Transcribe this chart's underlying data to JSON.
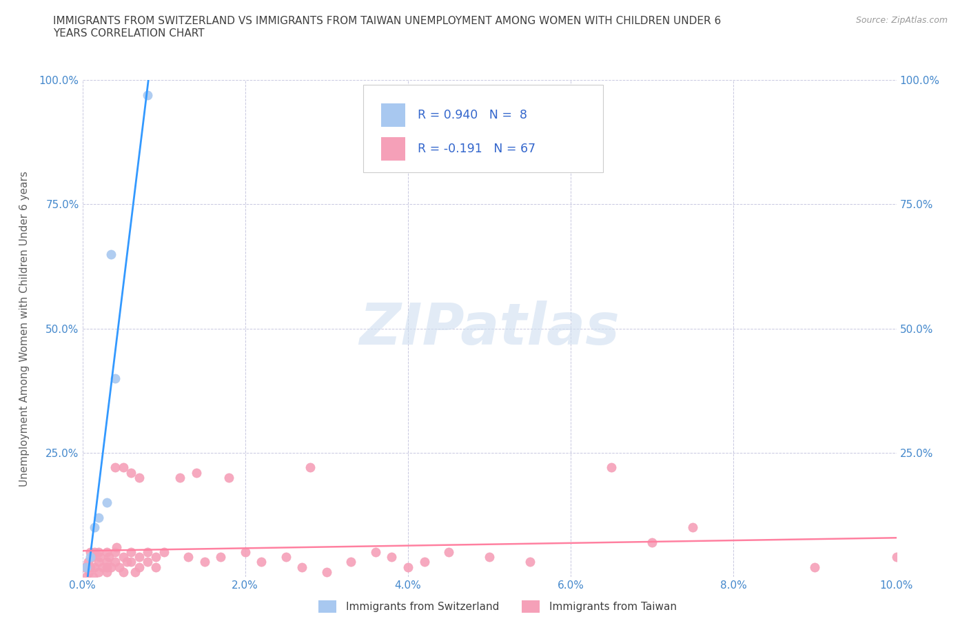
{
  "title": "IMMIGRANTS FROM SWITZERLAND VS IMMIGRANTS FROM TAIWAN UNEMPLOYMENT AMONG WOMEN WITH CHILDREN UNDER 6\nYEARS CORRELATION CHART",
  "source": "Source: ZipAtlas.com",
  "ylabel": "Unemployment Among Women with Children Under 6 years",
  "xlim": [
    0,
    0.1
  ],
  "ylim": [
    0,
    1.0
  ],
  "xticks": [
    0.0,
    0.02,
    0.04,
    0.06,
    0.08,
    0.1
  ],
  "xtick_labels": [
    "0.0%",
    "2.0%",
    "4.0%",
    "6.0%",
    "8.0%",
    "10.0%"
  ],
  "yticks": [
    0.0,
    0.25,
    0.5,
    0.75,
    1.0
  ],
  "ytick_labels_left": [
    "",
    "25.0%",
    "50.0%",
    "75.0%",
    "100.0%"
  ],
  "ytick_labels_right": [
    "",
    "25.0%",
    "50.0%",
    "75.0%",
    "100.0%"
  ],
  "switzerland_color": "#a8c8f0",
  "taiwan_color": "#f5a0b8",
  "trend_switzerland_color": "#3399ff",
  "trend_taiwan_color": "#ff80a0",
  "R_switzerland": 0.94,
  "N_switzerland": 8,
  "R_taiwan": -0.191,
  "N_taiwan": 67,
  "legend_label_switzerland": "Immigrants from Switzerland",
  "legend_label_taiwan": "Immigrants from Taiwan",
  "watermark_text": "ZIPatlas",
  "background_color": "#ffffff",
  "grid_color": "#c8c8e0",
  "title_color": "#404040",
  "axis_label_color": "#606060",
  "tick_color": "#4488cc",
  "legend_r_color": "#3366cc",
  "switzerland_x": [
    0.0005,
    0.001,
    0.0015,
    0.002,
    0.003,
    0.0035,
    0.004,
    0.008
  ],
  "switzerland_y": [
    0.02,
    0.04,
    0.1,
    0.12,
    0.15,
    0.65,
    0.4,
    0.97
  ],
  "taiwan_x": [
    0.0003,
    0.0005,
    0.0007,
    0.0008,
    0.001,
    0.001,
    0.0012,
    0.0013,
    0.0015,
    0.0015,
    0.002,
    0.002,
    0.002,
    0.0022,
    0.0025,
    0.003,
    0.003,
    0.003,
    0.003,
    0.0033,
    0.0035,
    0.004,
    0.004,
    0.004,
    0.0042,
    0.0045,
    0.005,
    0.005,
    0.005,
    0.0055,
    0.006,
    0.006,
    0.006,
    0.0065,
    0.007,
    0.007,
    0.007,
    0.008,
    0.008,
    0.009,
    0.009,
    0.01,
    0.012,
    0.013,
    0.014,
    0.015,
    0.017,
    0.018,
    0.02,
    0.022,
    0.025,
    0.027,
    0.028,
    0.03,
    0.033,
    0.036,
    0.038,
    0.04,
    0.042,
    0.045,
    0.05,
    0.055,
    0.065,
    0.07,
    0.075,
    0.09,
    0.1
  ],
  "taiwan_y": [
    0.02,
    0.0,
    0.03,
    0.01,
    0.05,
    0.02,
    0.04,
    0.0,
    0.05,
    0.02,
    0.05,
    0.03,
    0.01,
    0.04,
    0.02,
    0.05,
    0.03,
    0.02,
    0.01,
    0.04,
    0.02,
    0.22,
    0.05,
    0.03,
    0.06,
    0.02,
    0.04,
    0.22,
    0.01,
    0.03,
    0.21,
    0.05,
    0.03,
    0.01,
    0.2,
    0.04,
    0.02,
    0.05,
    0.03,
    0.04,
    0.02,
    0.05,
    0.2,
    0.04,
    0.21,
    0.03,
    0.04,
    0.2,
    0.05,
    0.03,
    0.04,
    0.02,
    0.22,
    0.01,
    0.03,
    0.05,
    0.04,
    0.02,
    0.03,
    0.05,
    0.04,
    0.03,
    0.22,
    0.07,
    0.1,
    0.02,
    0.04
  ]
}
